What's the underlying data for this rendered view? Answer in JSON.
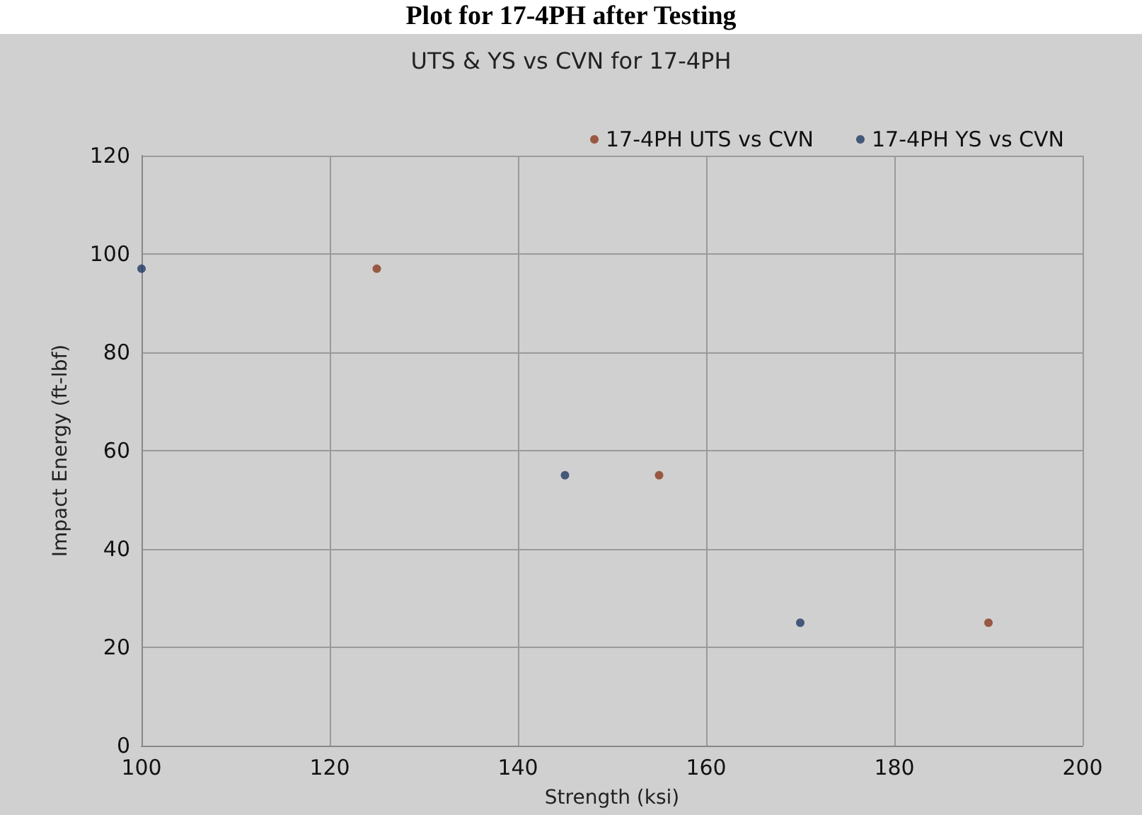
{
  "chart_data": {
    "type": "scatter",
    "title": "Plot for 17-4PH after Testing",
    "subtitle": "UTS & YS vs CVN for 17-4PH",
    "xlabel": "Strength (ksi)",
    "ylabel": "Impact Energy (ft-lbf)",
    "series": [
      {
        "name": "17-4PH UTS vs CVN",
        "color": "#8b3a1e",
        "x": [
          125,
          155,
          190
        ],
        "values": [
          97,
          55,
          25
        ]
      },
      {
        "name": "17-4PH YS vs CVN",
        "color": "#1f3a64",
        "x": [
          100,
          145,
          170
        ],
        "values": [
          97,
          55,
          25
        ]
      }
    ],
    "xlim": [
      100,
      200
    ],
    "xticks": [
      100,
      120,
      140,
      160,
      180,
      200
    ],
    "ylim": [
      0,
      120
    ],
    "yticks": [
      0,
      20,
      40,
      60,
      80,
      100,
      120
    ],
    "grid": true,
    "legend": "top right",
    "marker": "circle"
  }
}
